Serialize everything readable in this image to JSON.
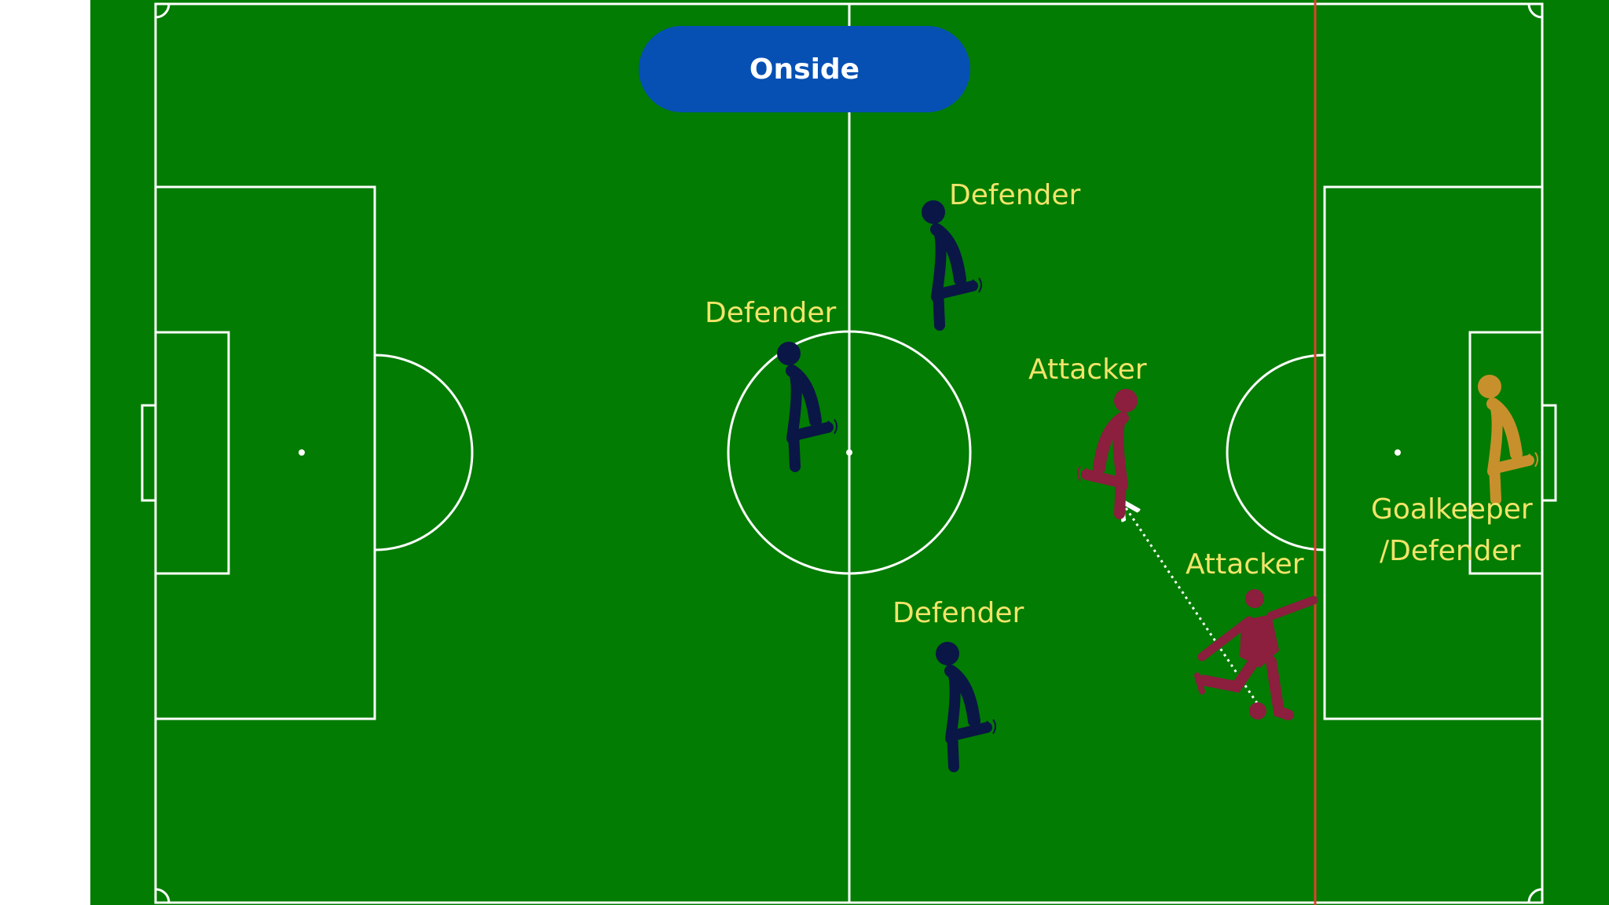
{
  "title": "Onside",
  "colors": {
    "grass": "#027c02",
    "line": "#ffffff",
    "badge": "#0650b4",
    "label": "#f2e46a",
    "defender": "#0a1646",
    "attacker": "#8c1e3e",
    "goalkeeper": "#c8902c",
    "offside_line": "#e0402c",
    "pass": "#ffffff"
  },
  "players": [
    {
      "role": "Defender",
      "team": "defender",
      "icon": "defender-figure-icon"
    },
    {
      "role": "Defender",
      "team": "defender",
      "icon": "defender-figure-icon"
    },
    {
      "role": "Defender",
      "team": "defender",
      "icon": "defender-figure-icon"
    },
    {
      "role": "Attacker",
      "team": "attacker",
      "icon": "attacker-figure-icon"
    },
    {
      "role": "Attacker",
      "team": "attacker",
      "icon": "kicking-attacker-icon"
    },
    {
      "role_line1": "Goalkeeper",
      "role_line2": "/Defender",
      "team": "goalkeeper",
      "icon": "goalkeeper-figure-icon"
    }
  ]
}
